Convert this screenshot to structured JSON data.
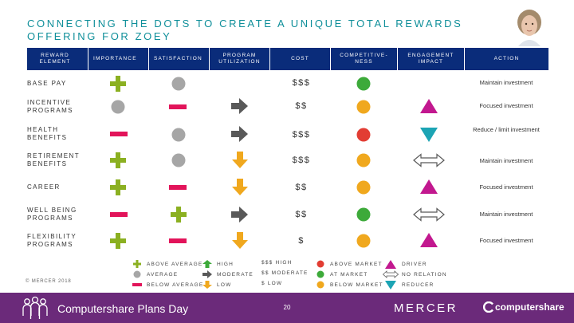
{
  "slide": {
    "title_line1": "CONNECTING THE DOTS TO CREATE A UNIQUE TOTAL REWARDS",
    "title_line2": "OFFERING FOR ZOEY"
  },
  "colors": {
    "green": "#8bb021",
    "grey": "#a6a6a6",
    "red": "#e2145a",
    "gold": "#f0a81e",
    "dark_grey": "#595959",
    "triangle_pink": "#c2188f",
    "triangle_teal": "#1ca4b4",
    "circle_green": "#3daa3a",
    "circle_red": "#e23d33",
    "header_bg": "#0a2c7a",
    "footer_bg": "#6b2a7a"
  },
  "table": {
    "headers": {
      "element": "REWARD ELEMENT",
      "importance": "IMPORTANCE",
      "satisfaction": "SATISFACTION",
      "utilization": "PROGRAM UTILIZATION",
      "cost": "COST",
      "competitiveness": "COMPETITIVE-NESS",
      "engagement": "ENGAGEMENT IMPACT",
      "action": "ACTION"
    },
    "rows": [
      {
        "element": "BASE PAY",
        "importance": "plus-icon",
        "satisfaction": "circle-icon",
        "utilization": "",
        "cost": "$$$",
        "competitiveness": "circle-green-icon",
        "engagement": "",
        "action": "Maintain investment"
      },
      {
        "element": "INCENTIVE PROGRAMS",
        "importance": "circle-icon",
        "satisfaction": "minus-icon",
        "utilization": "arrow-right-icon",
        "cost": "$$",
        "competitiveness": "circle-gold-icon",
        "engagement": "triangle-up-icon",
        "action": "Focused investment"
      },
      {
        "element": "HEALTH BENEFITS",
        "importance": "minus-icon",
        "satisfaction": "circle-icon",
        "utilization": "arrow-right-icon",
        "cost": "$$$",
        "competitiveness": "circle-red-icon",
        "engagement": "triangle-down-icon",
        "action": "Reduce / limit investment"
      },
      {
        "element": "RETIREMENT BENEFITS",
        "importance": "plus-icon",
        "satisfaction": "circle-icon",
        "utilization": "arrow-down-icon",
        "cost": "$$$",
        "competitiveness": "circle-gold-icon",
        "engagement": "double-arrow-icon",
        "action": "Maintain investment"
      },
      {
        "element": "CAREER",
        "importance": "plus-icon",
        "satisfaction": "minus-icon",
        "utilization": "arrow-down-icon",
        "cost": "$$",
        "competitiveness": "circle-gold-icon",
        "engagement": "triangle-up-icon",
        "action": "Focused investment"
      },
      {
        "element": "WELL BEING PROGRAMS",
        "importance": "minus-icon",
        "satisfaction": "plus-icon",
        "utilization": "arrow-right-icon",
        "cost": "$$",
        "competitiveness": "circle-green-icon",
        "engagement": "double-arrow-icon",
        "action": "Maintain investment"
      },
      {
        "element": "FLEXIBILITY PROGRAMS",
        "importance": "plus-icon",
        "satisfaction": "minus-icon",
        "utilization": "arrow-down-icon",
        "cost": "$",
        "competitiveness": "circle-gold-icon",
        "engagement": "triangle-up-icon",
        "action": "Focused investment"
      }
    ]
  },
  "legend": {
    "above_average": "ABOVE AVERAGE",
    "average": "AVERAGE",
    "below_average": "BELOW AVERAGE",
    "high": "HIGH",
    "moderate": "MODERATE",
    "low": "LOW",
    "cost_high": "$$$ HIGH",
    "cost_moderate": "$$ MODERATE",
    "cost_low": "$ LOW",
    "above_market": "ABOVE MARKET",
    "at_market": "AT MARKET",
    "below_market": "BELOW MARKET",
    "driver": "DRIVER",
    "no_relation": "NO RELATION",
    "reducer": "REDUCER"
  },
  "copyright": "© MERCER 2018",
  "footer": {
    "title": "Computershare Plans Day",
    "page": "20",
    "mercer": "MERCER",
    "computershare": "computershare"
  }
}
